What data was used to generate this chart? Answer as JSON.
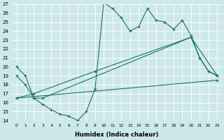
{
  "xlabel": "Humidex (Indice chaleur)",
  "ylabel": "",
  "bg_color": "#cde8ea",
  "line_color": "#1a7070",
  "grid_color": "#ffffff",
  "xlim": [
    -0.5,
    23.5
  ],
  "ylim": [
    14,
    27
  ],
  "xticks": [
    0,
    1,
    2,
    3,
    4,
    5,
    6,
    7,
    8,
    9,
    10,
    11,
    12,
    13,
    14,
    15,
    16,
    17,
    18,
    19,
    20,
    21,
    22,
    23
  ],
  "yticks": [
    14,
    15,
    16,
    17,
    18,
    19,
    20,
    21,
    22,
    23,
    24,
    25,
    26,
    27
  ],
  "series": [
    {
      "x": [
        0,
        1,
        2,
        3,
        4,
        5,
        6,
        7,
        8,
        9,
        10,
        11,
        12,
        13,
        14,
        15,
        16,
        17,
        18,
        19,
        20,
        21,
        22,
        23
      ],
      "y": [
        19.0,
        18.0,
        16.5,
        15.8,
        15.2,
        14.7,
        14.5,
        14.0,
        15.0,
        17.5,
        27.2,
        26.5,
        25.5,
        24.0,
        24.5,
        26.5,
        25.2,
        25.0,
        24.2,
        25.2,
        23.5,
        21.0,
        19.5,
        19.0
      ]
    },
    {
      "x": [
        0,
        1,
        2,
        3,
        20,
        21,
        22,
        23
      ],
      "y": [
        20.0,
        19.0,
        16.5,
        16.5,
        23.3,
        21.0,
        19.5,
        19.0
      ]
    },
    {
      "x": [
        0,
        2,
        9,
        20,
        23
      ],
      "y": [
        16.5,
        17.0,
        19.5,
        23.3,
        19.0
      ]
    },
    {
      "x": [
        0,
        23
      ],
      "y": [
        16.5,
        18.5
      ]
    }
  ]
}
